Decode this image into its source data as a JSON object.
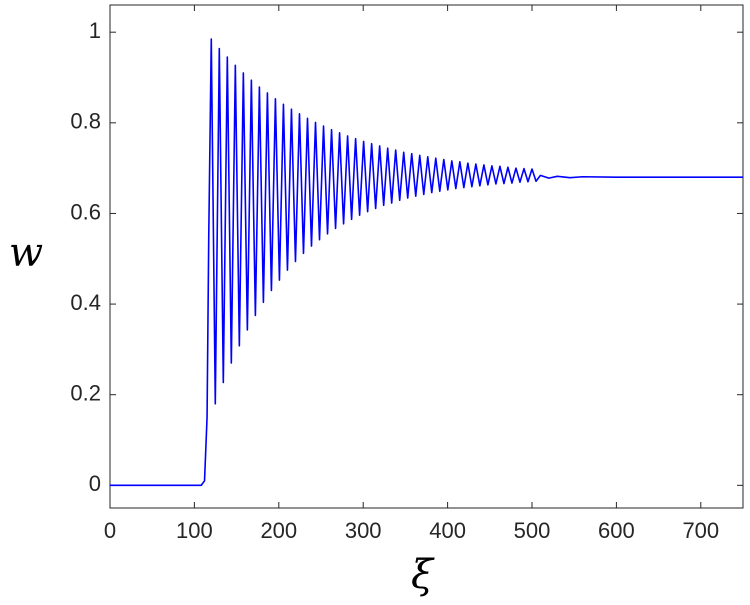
{
  "chart_data": {
    "type": "line",
    "xlabel": "ξ",
    "ylabel": "w",
    "color": "#0000ff",
    "xlim": [
      0,
      750
    ],
    "ylim": [
      -0.05,
      1.06
    ],
    "xticks": [
      0,
      100,
      200,
      300,
      400,
      500,
      600,
      700
    ],
    "yticks": [
      0,
      0.2,
      0.4,
      0.6,
      0.8,
      1
    ],
    "x": [
      0,
      108,
      112,
      115,
      117,
      120,
      124.75,
      129.5,
      134.25,
      139,
      143.75,
      148.5,
      153.25,
      158,
      162.75,
      167.5,
      172.25,
      177,
      181.75,
      186.5,
      191.25,
      196,
      200.75,
      205.5,
      210.25,
      215,
      219.75,
      224.5,
      229.25,
      234,
      238.75,
      243.5,
      248.25,
      253,
      257.75,
      262.5,
      267.25,
      272,
      276.75,
      281.5,
      286.25,
      291,
      295.75,
      300.5,
      305.25,
      310,
      314.75,
      319.5,
      324.25,
      329,
      333.75,
      338.5,
      343.25,
      348,
      352.75,
      357.5,
      362.25,
      367,
      371.75,
      376.5,
      381.25,
      386,
      390.75,
      395.5,
      400.25,
      405,
      409.75,
      414.5,
      419.25,
      424,
      428.75,
      433.5,
      438.25,
      443,
      447.75,
      452.5,
      457.25,
      462,
      466.75,
      471.5,
      476.25,
      481,
      485.75,
      490.5,
      495.25,
      500,
      504.75,
      510,
      520,
      530,
      545,
      560,
      600,
      650,
      700,
      750
    ],
    "values": [
      0,
      0,
      0.01,
      0.15,
      0.55,
      0.985,
      0.18,
      0.964,
      0.227,
      0.945,
      0.27,
      0.927,
      0.308,
      0.91,
      0.343,
      0.894,
      0.375,
      0.879,
      0.404,
      0.866,
      0.43,
      0.853,
      0.453,
      0.841,
      0.475,
      0.83,
      0.494,
      0.82,
      0.512,
      0.81,
      0.528,
      0.801,
      0.542,
      0.793,
      0.555,
      0.785,
      0.567,
      0.778,
      0.577,
      0.771,
      0.587,
      0.765,
      0.596,
      0.759,
      0.604,
      0.754,
      0.611,
      0.749,
      0.618,
      0.744,
      0.623,
      0.74,
      0.629,
      0.735,
      0.634,
      0.732,
      0.638,
      0.728,
      0.642,
      0.725,
      0.646,
      0.722,
      0.649,
      0.719,
      0.652,
      0.716,
      0.655,
      0.714,
      0.657,
      0.711,
      0.659,
      0.709,
      0.661,
      0.707,
      0.663,
      0.705,
      0.665,
      0.704,
      0.666,
      0.702,
      0.667,
      0.7,
      0.669,
      0.699,
      0.67,
      0.698,
      0.671,
      0.684,
      0.678,
      0.682,
      0.679,
      0.681,
      0.68,
      0.68,
      0.68,
      0.68
    ]
  }
}
